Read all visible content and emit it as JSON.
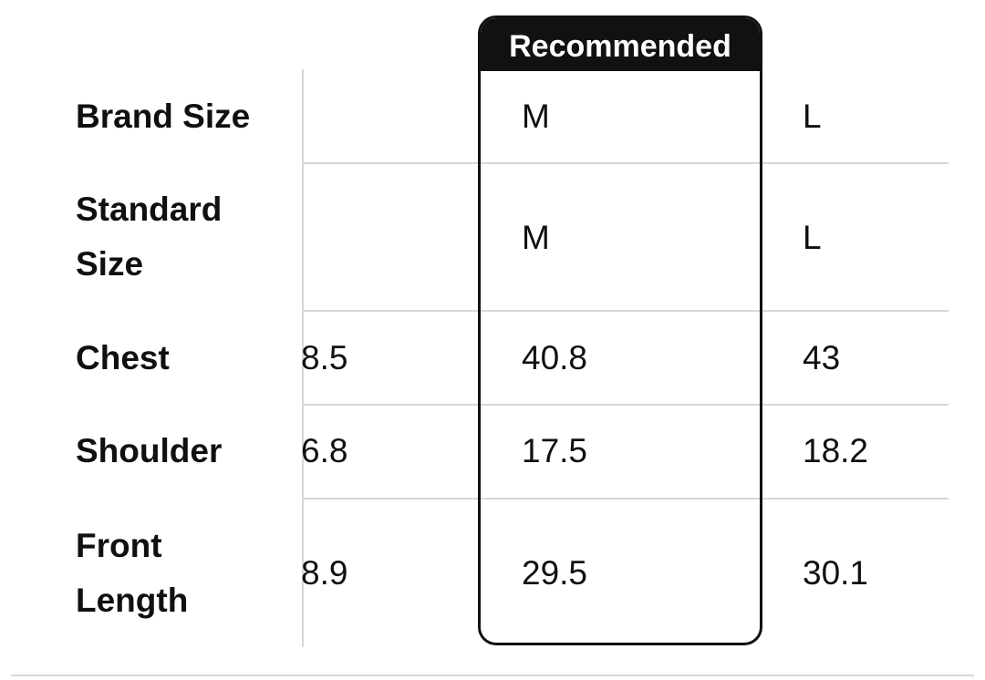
{
  "recommended_label": "Recommended",
  "rows": [
    {
      "label": "Brand Size",
      "partial": "",
      "recommended": "M",
      "next": "L"
    },
    {
      "label_line1": "Standard",
      "label_line2": "Size",
      "partial": "",
      "recommended": "M",
      "next": "L"
    },
    {
      "label": "Chest",
      "partial": "8.5",
      "recommended": "40.8",
      "next": "43"
    },
    {
      "label": "Shoulder",
      "partial": "6.8",
      "recommended": "17.5",
      "next": "18.2"
    },
    {
      "label_line1": "Front",
      "label_line2": "Length",
      "partial": "8.9",
      "recommended": "29.5",
      "next": "30.1"
    }
  ]
}
